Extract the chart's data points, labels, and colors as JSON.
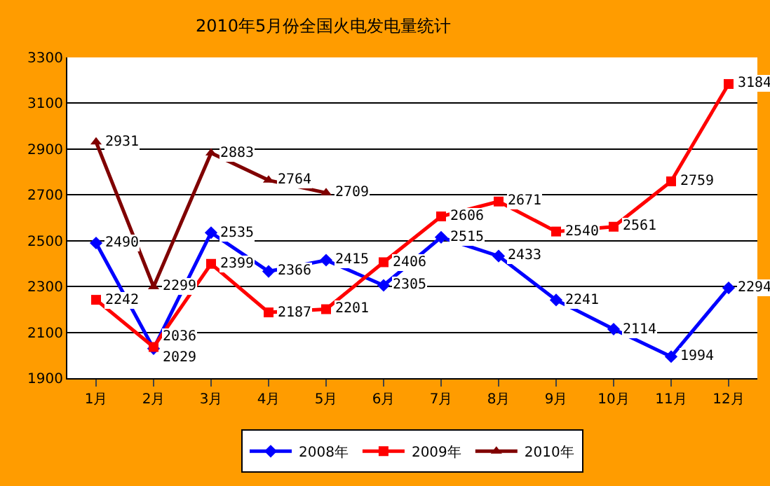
{
  "chart_data": {
    "type": "line",
    "title": "2010年5月份全国火电发电量统计",
    "categories": [
      "1月",
      "2月",
      "3月",
      "4月",
      "5月",
      "6月",
      "7月",
      "8月",
      "9月",
      "10月",
      "11月",
      "12月"
    ],
    "series": [
      {
        "name": "2008年",
        "color": "#0000ff",
        "marker": "diamond",
        "values": [
          2490,
          2029,
          2535,
          2366,
          2415,
          2305,
          2515,
          2433,
          2241,
          2114,
          1994,
          2294
        ]
      },
      {
        "name": "2009年",
        "color": "#ff0000",
        "marker": "square",
        "values": [
          2242,
          2036,
          2399,
          2187,
          2201,
          2406,
          2606,
          2671,
          2540,
          2561,
          2759,
          3184
        ]
      },
      {
        "name": "2010年",
        "color": "#800000",
        "marker": "triangle",
        "values": [
          2931,
          2299,
          2883,
          2764,
          2709,
          null,
          null,
          null,
          null,
          null,
          null,
          null
        ]
      }
    ],
    "ylim": [
      1900,
      3300
    ],
    "yticks": [
      1900,
      2100,
      2300,
      2500,
      2700,
      2900,
      3100,
      3300
    ],
    "grid": "y",
    "legend": "bottom",
    "data_labels": true,
    "line_style": "solid"
  }
}
